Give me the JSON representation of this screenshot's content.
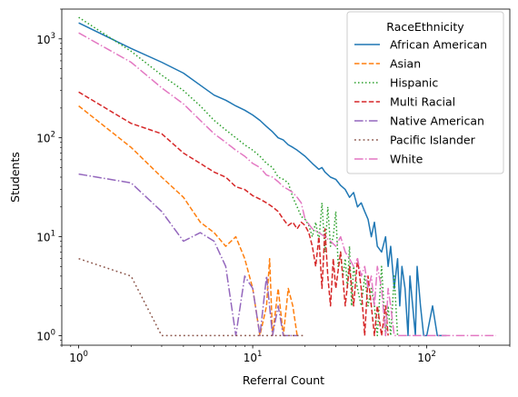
{
  "chart_data": {
    "type": "line",
    "title": "",
    "xlabel": "Referral Count",
    "ylabel": "Students",
    "xscale": "log",
    "yscale": "log",
    "xlim": [
      0.8,
      300
    ],
    "ylim": [
      0.8,
      2000
    ],
    "x_ticks": [
      {
        "value": 1,
        "base": "10",
        "exp": "0"
      },
      {
        "value": 10,
        "base": "10",
        "exp": "1"
      },
      {
        "value": 100,
        "base": "10",
        "exp": "2"
      }
    ],
    "y_ticks": [
      {
        "value": 1,
        "base": "10",
        "exp": "0"
      },
      {
        "value": 10,
        "base": "10",
        "exp": "1"
      },
      {
        "value": 100,
        "base": "10",
        "exp": "2"
      },
      {
        "value": 1000,
        "base": "10",
        "exp": "3"
      }
    ],
    "grid": false,
    "legend": {
      "title": "RaceEthnicity",
      "position": "top-right"
    },
    "series": [
      {
        "name": "African American",
        "color": "#1f77b4",
        "dash": "solid",
        "points": [
          [
            1,
            1450
          ],
          [
            2,
            800
          ],
          [
            3,
            580
          ],
          [
            4,
            450
          ],
          [
            5,
            340
          ],
          [
            6,
            270
          ],
          [
            7,
            240
          ],
          [
            8,
            210
          ],
          [
            9,
            190
          ],
          [
            10,
            170
          ],
          [
            11,
            150
          ],
          [
            12,
            130
          ],
          [
            13,
            115
          ],
          [
            14,
            100
          ],
          [
            15,
            95
          ],
          [
            16,
            85
          ],
          [
            17,
            80
          ],
          [
            18,
            75
          ],
          [
            20,
            65
          ],
          [
            22,
            55
          ],
          [
            24,
            48
          ],
          [
            25,
            50
          ],
          [
            26,
            45
          ],
          [
            28,
            40
          ],
          [
            30,
            38
          ],
          [
            32,
            33
          ],
          [
            34,
            30
          ],
          [
            36,
            25
          ],
          [
            38,
            28
          ],
          [
            40,
            20
          ],
          [
            42,
            22
          ],
          [
            44,
            18
          ],
          [
            46,
            15
          ],
          [
            48,
            10
          ],
          [
            50,
            14
          ],
          [
            52,
            8
          ],
          [
            55,
            7
          ],
          [
            58,
            10
          ],
          [
            60,
            5
          ],
          [
            62,
            8
          ],
          [
            65,
            3
          ],
          [
            68,
            6
          ],
          [
            70,
            2
          ],
          [
            72,
            5
          ],
          [
            75,
            3
          ],
          [
            78,
            1
          ],
          [
            80,
            4
          ],
          [
            83,
            2
          ],
          [
            86,
            1
          ],
          [
            88,
            5
          ],
          [
            92,
            2
          ],
          [
            96,
            1
          ],
          [
            100,
            1
          ],
          [
            108,
            2
          ],
          [
            115,
            1
          ],
          [
            130,
            1
          ]
        ]
      },
      {
        "name": "Asian",
        "color": "#ff7f0e",
        "dash": "dashed",
        "points": [
          [
            1,
            210
          ],
          [
            2,
            80
          ],
          [
            3,
            40
          ],
          [
            4,
            25
          ],
          [
            5,
            14
          ],
          [
            6,
            11
          ],
          [
            7,
            8
          ],
          [
            8,
            10
          ],
          [
            9,
            6
          ],
          [
            10,
            3
          ],
          [
            11,
            1
          ],
          [
            12,
            2
          ],
          [
            12.5,
            6
          ],
          [
            13,
            1
          ],
          [
            14,
            3
          ],
          [
            15,
            1
          ],
          [
            16,
            3
          ],
          [
            17,
            2
          ],
          [
            18,
            1
          ]
        ]
      },
      {
        "name": "Hispanic",
        "color": "#2ca02c",
        "dash": "dotted",
        "points": [
          [
            1,
            1650
          ],
          [
            2,
            750
          ],
          [
            3,
            430
          ],
          [
            4,
            300
          ],
          [
            5,
            210
          ],
          [
            6,
            150
          ],
          [
            7,
            120
          ],
          [
            8,
            100
          ],
          [
            9,
            85
          ],
          [
            10,
            75
          ],
          [
            11,
            65
          ],
          [
            12,
            55
          ],
          [
            13,
            50
          ],
          [
            14,
            40
          ],
          [
            15,
            38
          ],
          [
            16,
            35
          ],
          [
            17,
            25
          ],
          [
            18,
            20
          ],
          [
            19,
            16
          ],
          [
            20,
            15
          ],
          [
            21,
            13
          ],
          [
            22,
            10
          ],
          [
            23,
            14
          ],
          [
            24,
            9
          ],
          [
            25,
            22
          ],
          [
            26,
            7
          ],
          [
            27,
            20
          ],
          [
            28,
            8
          ],
          [
            29,
            10
          ],
          [
            30,
            18
          ],
          [
            31,
            5
          ],
          [
            32,
            7
          ],
          [
            33,
            4
          ],
          [
            34,
            6
          ],
          [
            35,
            3
          ],
          [
            36,
            8
          ],
          [
            37,
            2
          ],
          [
            38,
            5
          ],
          [
            40,
            3
          ],
          [
            42,
            2
          ],
          [
            44,
            4
          ],
          [
            46,
            2
          ],
          [
            48,
            3
          ],
          [
            50,
            2
          ],
          [
            52,
            1
          ],
          [
            55,
            5
          ],
          [
            58,
            1
          ],
          [
            60,
            2
          ],
          [
            62,
            1
          ],
          [
            65,
            4
          ],
          [
            68,
            1
          ]
        ]
      },
      {
        "name": "Multi Racial",
        "color": "#d62728",
        "dash": "dashed",
        "points": [
          [
            1,
            290
          ],
          [
            2,
            140
          ],
          [
            3,
            110
          ],
          [
            4,
            70
          ],
          [
            5,
            55
          ],
          [
            6,
            45
          ],
          [
            7,
            40
          ],
          [
            8,
            32
          ],
          [
            9,
            30
          ],
          [
            10,
            26
          ],
          [
            11,
            24
          ],
          [
            12,
            22
          ],
          [
            13,
            20
          ],
          [
            14,
            18
          ],
          [
            15,
            15
          ],
          [
            16,
            13
          ],
          [
            17,
            14
          ],
          [
            18,
            12
          ],
          [
            19,
            14
          ],
          [
            20,
            13
          ],
          [
            21,
            11
          ],
          [
            22,
            8
          ],
          [
            23,
            5
          ],
          [
            24,
            10
          ],
          [
            25,
            3
          ],
          [
            26,
            12
          ],
          [
            27,
            4
          ],
          [
            28,
            2
          ],
          [
            29,
            6
          ],
          [
            30,
            3
          ],
          [
            32,
            7
          ],
          [
            34,
            2
          ],
          [
            36,
            5
          ],
          [
            38,
            2
          ],
          [
            40,
            6
          ],
          [
            42,
            3
          ],
          [
            44,
            1
          ],
          [
            46,
            4
          ],
          [
            48,
            2
          ],
          [
            50,
            1
          ],
          [
            52,
            2
          ],
          [
            55,
            1
          ],
          [
            58,
            2
          ],
          [
            60,
            1
          ]
        ]
      },
      {
        "name": "Native American",
        "color": "#9467bd",
        "dash": "dashdot",
        "points": [
          [
            1,
            43
          ],
          [
            2,
            35
          ],
          [
            3,
            18
          ],
          [
            4,
            9
          ],
          [
            5,
            11
          ],
          [
            6,
            9
          ],
          [
            7,
            5
          ],
          [
            8,
            1
          ],
          [
            9,
            4
          ],
          [
            10,
            3
          ],
          [
            11,
            1
          ],
          [
            12,
            4
          ],
          [
            13,
            1
          ],
          [
            14,
            2
          ],
          [
            15,
            1
          ],
          [
            16,
            1
          ],
          [
            18,
            1
          ]
        ]
      },
      {
        "name": "Pacific Islander",
        "color": "#8c564b",
        "dash": "dotted-dash",
        "points": [
          [
            1,
            6
          ],
          [
            2,
            4
          ],
          [
            3,
            1
          ],
          [
            4,
            1
          ],
          [
            10,
            1
          ],
          [
            20,
            1
          ]
        ]
      },
      {
        "name": "White",
        "color": "#e377c2",
        "dash": "dashdot",
        "points": [
          [
            1,
            1150
          ],
          [
            2,
            580
          ],
          [
            3,
            320
          ],
          [
            4,
            220
          ],
          [
            5,
            150
          ],
          [
            6,
            110
          ],
          [
            7,
            90
          ],
          [
            8,
            75
          ],
          [
            9,
            65
          ],
          [
            10,
            55
          ],
          [
            11,
            50
          ],
          [
            12,
            42
          ],
          [
            13,
            40
          ],
          [
            14,
            36
          ],
          [
            15,
            32
          ],
          [
            16,
            30
          ],
          [
            17,
            28
          ],
          [
            18,
            25
          ],
          [
            19,
            22
          ],
          [
            20,
            15
          ],
          [
            22,
            12
          ],
          [
            24,
            11
          ],
          [
            26,
            10
          ],
          [
            28,
            9
          ],
          [
            30,
            8
          ],
          [
            32,
            10
          ],
          [
            34,
            7
          ],
          [
            36,
            6
          ],
          [
            38,
            5
          ],
          [
            40,
            6
          ],
          [
            42,
            4
          ],
          [
            44,
            5
          ],
          [
            46,
            3
          ],
          [
            48,
            4
          ],
          [
            50,
            2
          ],
          [
            52,
            5
          ],
          [
            55,
            3
          ],
          [
            58,
            1
          ],
          [
            60,
            3
          ],
          [
            62,
            2
          ],
          [
            65,
            1
          ],
          [
            70,
            1
          ],
          [
            80,
            1
          ],
          [
            100,
            1
          ],
          [
            150,
            1
          ],
          [
            200,
            1
          ],
          [
            250,
            1
          ]
        ]
      }
    ]
  }
}
